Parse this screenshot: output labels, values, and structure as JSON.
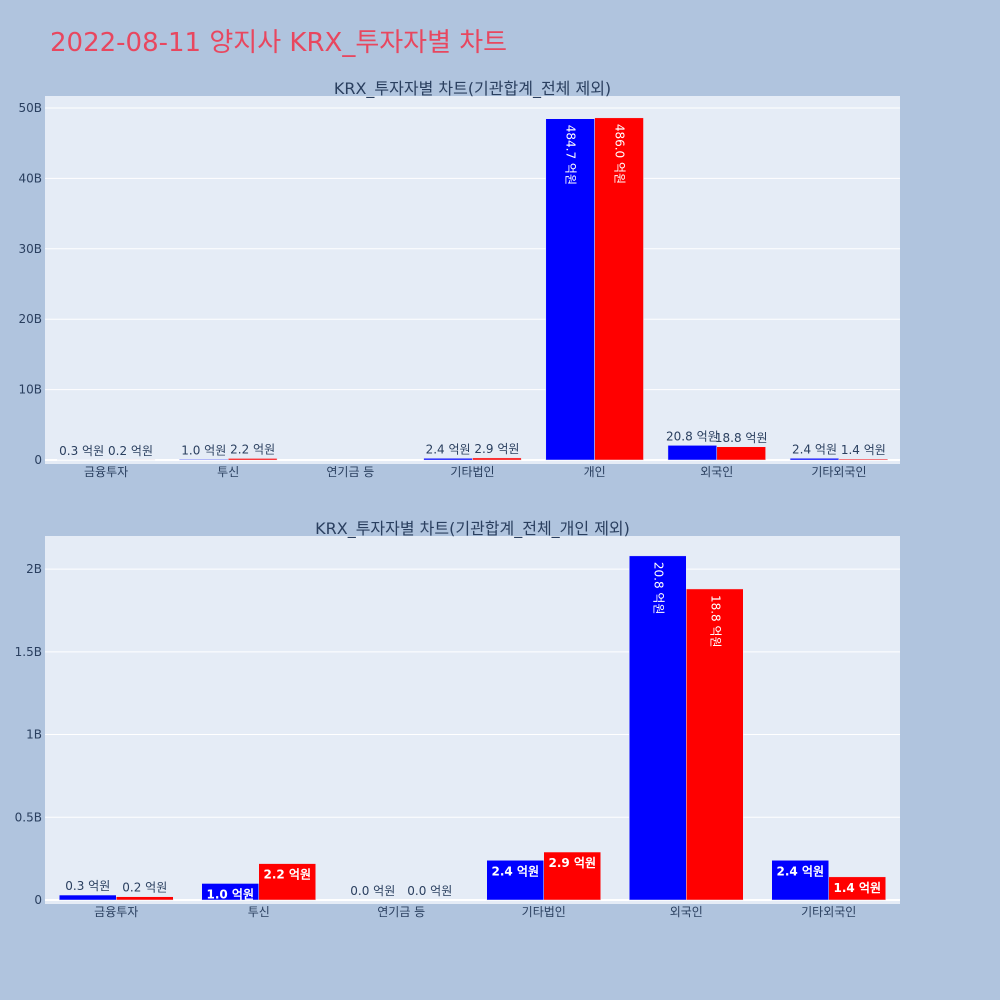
{
  "page": {
    "title": "2022-08-11 양지사 KRX_투자자별 차트"
  },
  "colors": {
    "buy": "#0000ff",
    "sell": "#ff0000",
    "plot_bg": "#e5ecf6",
    "page_bg": "#b0c4de",
    "title": "#e8475f"
  },
  "chart_data": [
    {
      "type": "bar",
      "title": "KRX_투자자별 차트(기관합계_전체 제외)",
      "categories": [
        "금융투자",
        "투신",
        "연기금 등",
        "기타법인",
        "개인",
        "외국인",
        "기타외국인"
      ],
      "series": [
        {
          "color": "#0000ff",
          "values": [
            30000000,
            100000000,
            0,
            240000000,
            48470000000,
            2080000000,
            240000000
          ],
          "labels": [
            "0.3 억원",
            "1.0 억원",
            "",
            "2.4 억원",
            "484.7 억원",
            "20.8 억원",
            "2.4 억원"
          ]
        },
        {
          "color": "#ff0000",
          "values": [
            20000000,
            220000000,
            0,
            290000000,
            48600000000,
            1880000000,
            140000000
          ],
          "labels": [
            "0.2 억원",
            "2.2 억원",
            "",
            "2.9 억원",
            "486.0 억원",
            "18.8 억원",
            "1.4 억원"
          ]
        }
      ],
      "y_ticks": [
        {
          "value": 0,
          "label": "0"
        },
        {
          "value": 10000000000,
          "label": "10B"
        },
        {
          "value": 20000000000,
          "label": "20B"
        },
        {
          "value": 30000000000,
          "label": "30B"
        },
        {
          "value": 40000000000,
          "label": "40B"
        },
        {
          "value": 50000000000,
          "label": "50B"
        }
      ],
      "ylim": [
        0,
        51700000000
      ],
      "grid": true
    },
    {
      "type": "bar",
      "title": "KRX_투자자별 차트(기관합계_전체_개인 제외)",
      "categories": [
        "금융투자",
        "투신",
        "연기금 등",
        "기타법인",
        "외국인",
        "기타외국인"
      ],
      "series": [
        {
          "color": "#0000ff",
          "values": [
            30000000,
            100000000,
            0,
            240000000,
            2080000000,
            240000000
          ],
          "labels": [
            "0.3 억원",
            "1.0 억원",
            "0.0 억원",
            "2.4 억원",
            "20.8 억원",
            "2.4 억원"
          ]
        },
        {
          "color": "#ff0000",
          "values": [
            20000000,
            220000000,
            0,
            290000000,
            1880000000,
            140000000
          ],
          "labels": [
            "0.2 억원",
            "2.2 억원",
            "0.0 억원",
            "2.9 억원",
            "18.8 억원",
            "1.4 억원"
          ]
        }
      ],
      "y_ticks": [
        {
          "value": 0,
          "label": "0"
        },
        {
          "value": 500000000,
          "label": "0.5B"
        },
        {
          "value": 1000000000,
          "label": "1B"
        },
        {
          "value": 1500000000,
          "label": "1.5B"
        },
        {
          "value": 2000000000,
          "label": "2B"
        }
      ],
      "ylim": [
        0,
        2200000000
      ],
      "grid": true
    }
  ]
}
